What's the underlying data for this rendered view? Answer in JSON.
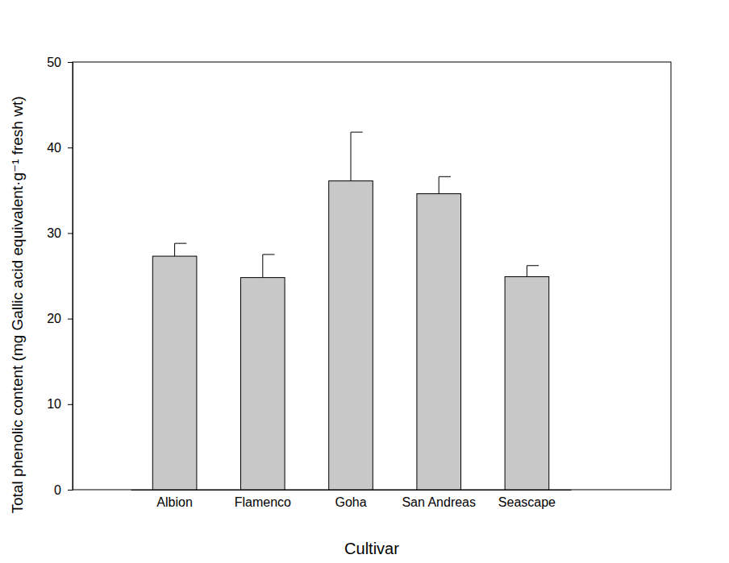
{
  "chart_data": {
    "type": "bar",
    "x_label": "Cultivar",
    "y_label": "Total phenolic content (mg Gallic acid equivalent·g⁻¹ fresh wt)",
    "categories": [
      "Albion",
      "Flamenco",
      "Goha",
      "San Andreas",
      "Seascape"
    ],
    "values": [
      27.3,
      24.8,
      36.1,
      34.6,
      24.9
    ],
    "errors": [
      1.5,
      2.7,
      5.7,
      2.0,
      1.3
    ],
    "color": "#c8c8c8",
    "ylim": [
      0,
      50
    ],
    "yticks": [
      0,
      10,
      20,
      30,
      40,
      50
    ],
    "grid": false
  }
}
